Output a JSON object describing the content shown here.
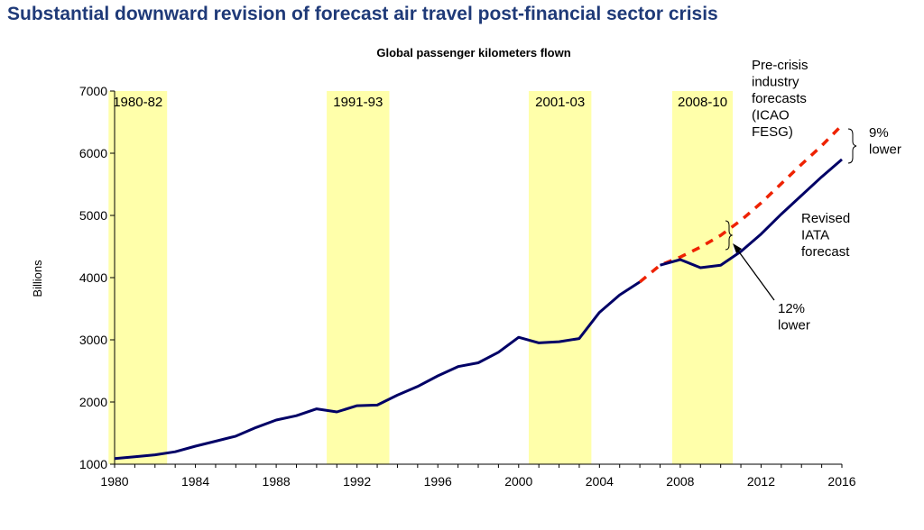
{
  "page": {
    "title": "Substantial downward revision of forecast air travel post-financial sector crisis"
  },
  "chart_data": {
    "type": "line",
    "title": "Global passenger kilometers flown",
    "xlabel": "",
    "ylabel": "Billions",
    "xlim": [
      1980,
      2016
    ],
    "ylim": [
      1000,
      7000
    ],
    "x_ticks": [
      1980,
      1984,
      1988,
      1992,
      1996,
      2000,
      2004,
      2008,
      2012,
      2016
    ],
    "y_ticks": [
      1000,
      2000,
      3000,
      4000,
      5000,
      6000,
      7000
    ],
    "grid": false,
    "colors": {
      "actual": "#000066",
      "forecast": "#ee2200",
      "shading": "#ffffaa"
    },
    "shaded_periods": [
      {
        "label": "1980-82",
        "from": 1979.7,
        "to": 1982.6
      },
      {
        "label": "1991-93",
        "from": 1990.5,
        "to": 1993.6
      },
      {
        "label": "2001-03",
        "from": 2000.5,
        "to": 2003.6
      },
      {
        "label": "2008-10",
        "from": 2007.6,
        "to": 2010.6
      }
    ],
    "series": [
      {
        "style": "solid",
        "x": [
          1980,
          1981,
          1982,
          1983,
          1984,
          1985,
          1986,
          1987,
          1988,
          1989,
          1990,
          1991,
          1992,
          1993,
          1994,
          1995,
          1996,
          1997,
          1998,
          1999,
          2000,
          2001,
          2002,
          2003,
          2004,
          2005,
          2006
        ],
        "values": [
          1090,
          1120,
          1150,
          1200,
          1290,
          1370,
          1450,
          1590,
          1710,
          1780,
          1890,
          1840,
          1940,
          1950,
          2110,
          2250,
          2420,
          2570,
          2630,
          2800,
          3040,
          2950,
          2970,
          3020,
          3440,
          3720,
          3930
        ]
      },
      {
        "name": "Pre-crisis industry forecasts (ICAO FESG)",
        "style": "dashed",
        "x": [
          2006,
          2007,
          2008,
          2009,
          2010,
          2011,
          2012,
          2013,
          2014,
          2015,
          2016
        ],
        "values": [
          3930,
          4200,
          4330,
          4490,
          4680,
          4920,
          5200,
          5510,
          5820,
          6120,
          6450
        ]
      },
      {
        "name": "Revised IATA forecast",
        "style": "solid",
        "x": [
          2007,
          2008,
          2009,
          2010,
          2011,
          2012,
          2013,
          2014,
          2015,
          2016
        ],
        "values": [
          4200,
          4290,
          4160,
          4200,
          4420,
          4700,
          5020,
          5320,
          5620,
          5900
        ]
      }
    ],
    "annotations": [
      {
        "id": "precrisis",
        "lines": [
          "Pre-crisis",
          "industry",
          "forecasts",
          "(ICAO",
          "FESG)"
        ]
      },
      {
        "id": "nine",
        "lines": [
          "9%",
          "lower"
        ]
      },
      {
        "id": "revised",
        "lines": [
          "Revised",
          "IATA",
          "forecast"
        ]
      },
      {
        "id": "twelve",
        "lines": [
          "12%",
          "lower"
        ]
      }
    ]
  }
}
